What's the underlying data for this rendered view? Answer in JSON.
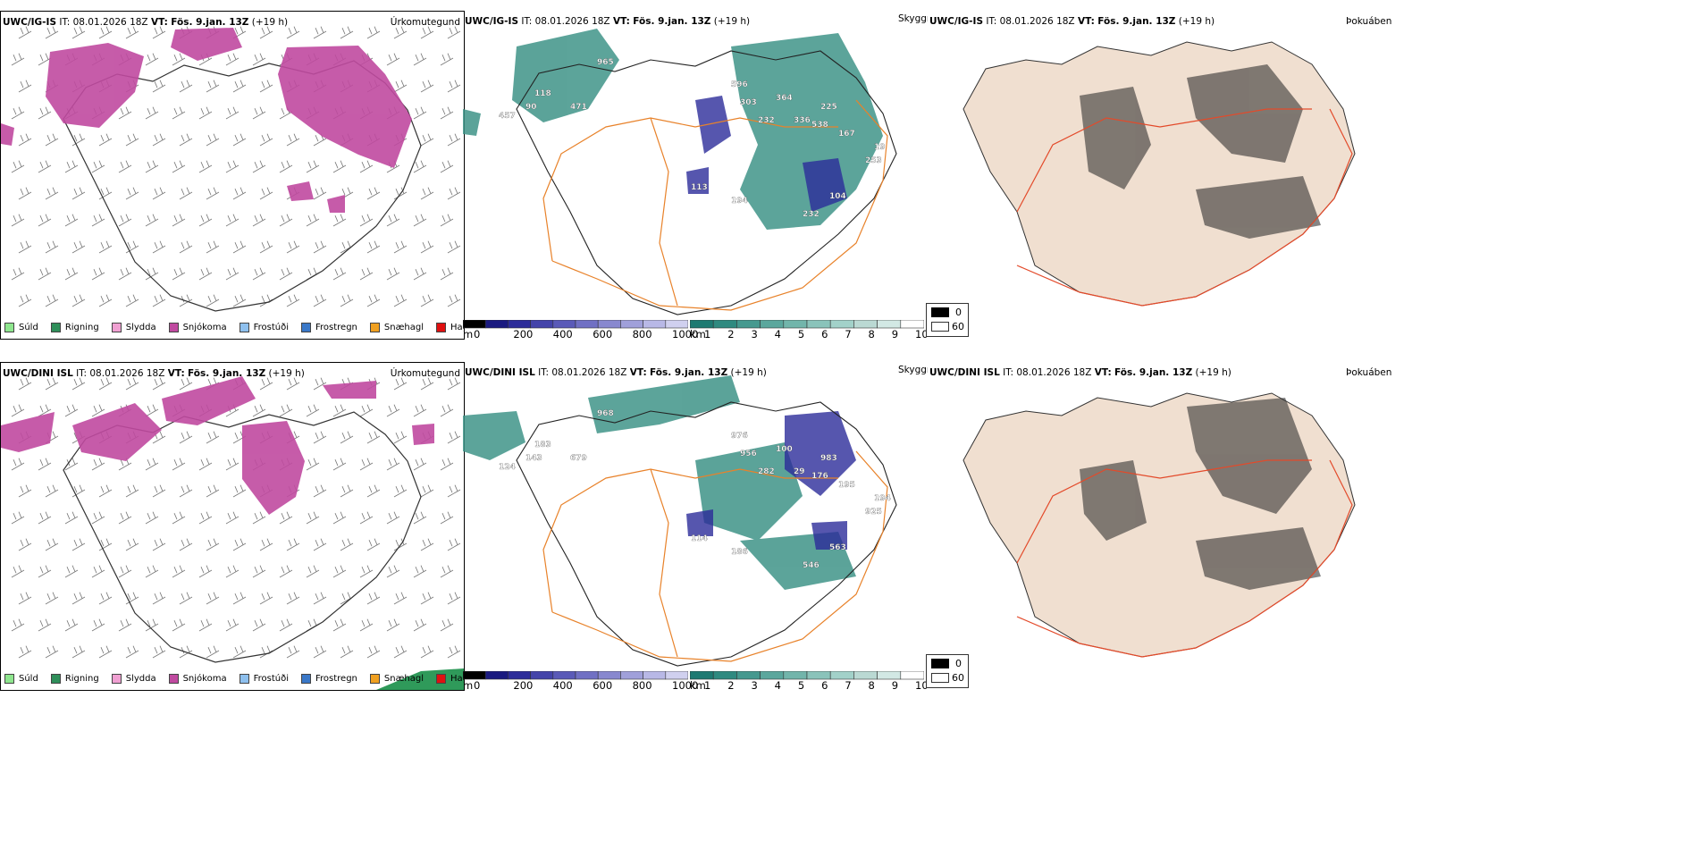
{
  "rows": [
    {
      "model": "UWC/IG-IS",
      "it_label": "IT:",
      "it_value": "08.01.2026 18Z",
      "vt_label": "VT:",
      "vt_value": "Fös. 9.jan. 13Z",
      "lead": "(+19 h)"
    },
    {
      "model": "UWC/DINI ISL",
      "it_label": "IT:",
      "it_value": "08.01.2026 18Z",
      "vt_label": "VT:",
      "vt_value": "Fös. 9.jan. 13Z",
      "lead": "(+19 h)"
    }
  ],
  "panel_titles": {
    "precip": "Úrkomutegund",
    "visibility": "Skyggni",
    "fog": "Þokuábendi"
  },
  "precip_legend": [
    {
      "label": "Súld",
      "color": "#8ee68e"
    },
    {
      "label": "Rigning",
      "color": "#2f8f5a"
    },
    {
      "label": "Slydda",
      "color": "#f0a0d2"
    },
    {
      "label": "Snjókoma",
      "color": "#c04aa0"
    },
    {
      "label": "Frostúði",
      "color": "#8ec0ee"
    },
    {
      "label": "Frostregn",
      "color": "#3a78c8"
    },
    {
      "label": "Snæhagl",
      "color": "#f0a020"
    },
    {
      "label": "Haglél",
      "color": "#e01010"
    }
  ],
  "ceiling_bar": {
    "unit": "m",
    "ticks": [
      "0",
      "200",
      "400",
      "600",
      "800",
      "1000"
    ],
    "colors": [
      "#000000",
      "#1a1a80",
      "#2c2c9a",
      "#4444aa",
      "#5a5ab8",
      "#7070c4",
      "#8888cf",
      "#a0a0da",
      "#b8b8e6",
      "#d0d0ef"
    ]
  },
  "vis_bar": {
    "unit": "km",
    "ticks": [
      "1",
      "2",
      "3",
      "4",
      "5",
      "6",
      "7",
      "8",
      "9",
      "10"
    ],
    "colors": [
      "#1e7a72",
      "#2f8a80",
      "#45998f",
      "#5ba79d",
      "#72b5ab",
      "#8ac3ba",
      "#a2d1c9",
      "#bad9d3",
      "#d2e8e4",
      "#ffffff"
    ]
  },
  "fog_legend": {
    "top": "0",
    "bottom": "60"
  },
  "map_labels": {
    "row1": [
      "965",
      "596",
      "303",
      "364",
      "225",
      "232",
      "538",
      "167",
      "19",
      "253",
      "104",
      "232",
      "194",
      "113",
      "90",
      "457",
      "118",
      "471",
      "336"
    ],
    "row2": [
      "968",
      "976",
      "956",
      "100",
      "983",
      "282",
      "176",
      "195",
      "194",
      "925",
      "563",
      "546",
      "186",
      "114",
      "143",
      "124",
      "183",
      "679",
      "29"
    ]
  }
}
